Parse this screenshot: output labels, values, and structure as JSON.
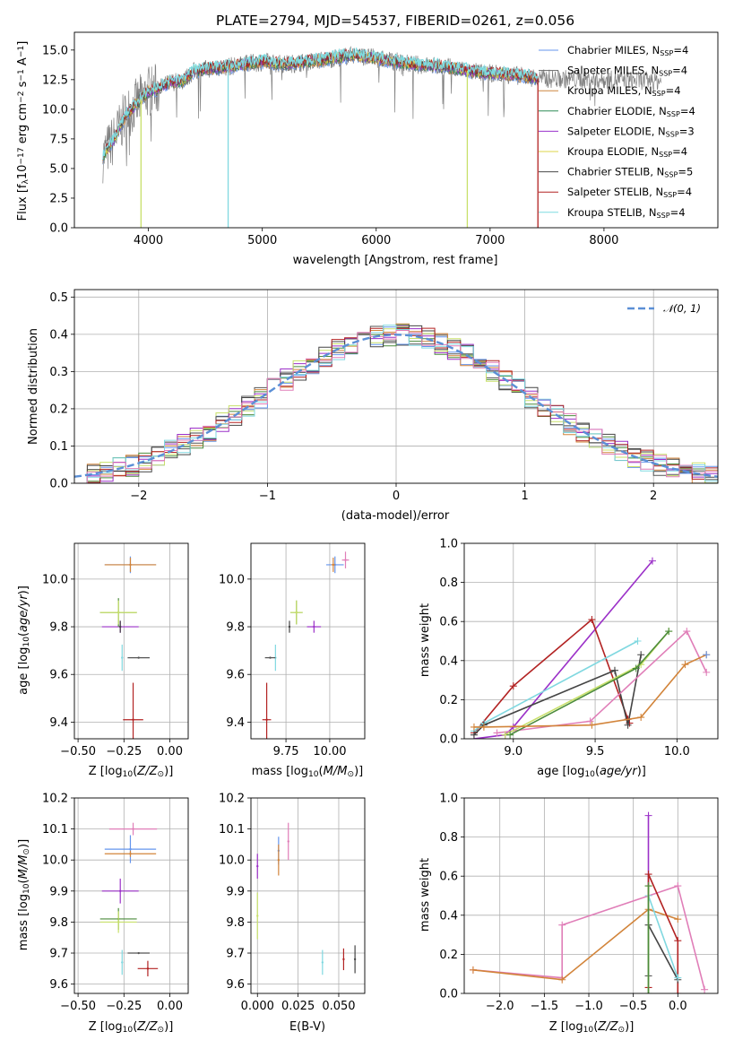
{
  "chart_data": [
    {
      "id": "spectrum",
      "type": "line",
      "title": "PLATE=2794, MJD=54537, FIBERID=0261, z=0.056",
      "xlabel": "wavelength [Angstrom, rest frame]",
      "ylabel": "Flux [fλ10⁻¹⁷ erg cm⁻² s⁻¹ A⁻¹]",
      "xlim": [
        3350,
        9000
      ],
      "ylim": [
        0,
        16.5
      ],
      "xticks": [
        4000,
        5000,
        6000,
        7000,
        8000
      ],
      "yticks": [
        0.0,
        2.5,
        5.0,
        7.5,
        10.0,
        12.5,
        15.0
      ],
      "legend_position": "right",
      "series": [
        {
          "name": "Chabrier MILES, N",
          "sub": "SSP",
          "suffix": "=4",
          "color": "#6495ed"
        },
        {
          "name": "Salpeter MILES, N",
          "sub": "SSP",
          "suffix": "=4",
          "color": "#666666"
        },
        {
          "name": "Kroupa MILES, N",
          "sub": "SSP",
          "suffix": "=4",
          "color": "#cd853f"
        },
        {
          "name": "Chabrier ELODIE, N",
          "sub": "SSP",
          "suffix": "=4",
          "color": "#2e8b57"
        },
        {
          "name": "Salpeter ELODIE, N",
          "sub": "SSP",
          "suffix": "=3",
          "color": "#9932cc"
        },
        {
          "name": "Kroupa ELODIE, N",
          "sub": "SSP",
          "suffix": "=4",
          "color": "#ddd64a"
        },
        {
          "name": "Chabrier STELIB, N",
          "sub": "SSP",
          "suffix": "=5",
          "color": "#4a4a4a"
        },
        {
          "name": "Salpeter STELIB, N",
          "sub": "SSP",
          "suffix": "=4",
          "color": "#b22222"
        },
        {
          "name": "Kroupa STELIB, N",
          "sub": "SSP",
          "suffix": "=4",
          "color": "#7fdbe0"
        }
      ],
      "data_color": "#808080",
      "approx_continuum": {
        "wavelength": [
          3600,
          3700,
          3800,
          3900,
          4000,
          4100,
          4200,
          4300,
          4400,
          4500,
          4700,
          5000,
          5200,
          5500,
          5800,
          6000,
          6300,
          6600,
          6900,
          7200,
          7420
        ],
        "flux": [
          6.0,
          7.5,
          9.5,
          10.5,
          11.5,
          11.8,
          12.3,
          12.4,
          13.2,
          13.4,
          13.6,
          14.0,
          13.8,
          14.1,
          14.6,
          14.3,
          13.8,
          13.6,
          13.1,
          12.9,
          12.6
        ]
      },
      "drops": [
        3935,
        4700,
        6800,
        7420
      ]
    },
    {
      "id": "residuals",
      "type": "line",
      "xlabel": "(data-model)/error",
      "ylabel": "Normed distribution",
      "xlim": [
        -2.5,
        2.5
      ],
      "ylim": [
        0,
        0.52
      ],
      "xticks": [
        -2,
        -1,
        0,
        1,
        2
      ],
      "yticks": [
        0.0,
        0.1,
        0.2,
        0.3,
        0.4,
        0.5
      ],
      "legend_position": "top-right",
      "reference_label": "𝒩(0, 1)",
      "reference_color": "#5b8fd6",
      "bin_width": 0.1,
      "bin_start": -2.5
    },
    {
      "id": "z-vs-age",
      "type": "scatter",
      "xlabel": "Z [log10(Z/Z⊙)]",
      "ylabel": "age  [log10(age/yr)]",
      "xlim": [
        -0.52,
        0.1
      ],
      "ylim": [
        9.33,
        10.15
      ],
      "xticks": [
        -0.5,
        -0.25,
        0.0
      ],
      "yticks": [
        9.4,
        9.6,
        9.8,
        10.0
      ],
      "points": [
        {
          "c": 0,
          "x": -0.215,
          "y": 10.06,
          "xerr": 0.28,
          "yerr": 0.07
        },
        {
          "c": 2,
          "x": -0.215,
          "y": 10.06,
          "xerr": 0.28,
          "yerr": 0.06
        },
        {
          "c": 4,
          "x": -0.27,
          "y": 9.8,
          "xerr": 0.2,
          "yerr": 0.05
        },
        {
          "c": 3,
          "x": -0.28,
          "y": 9.86,
          "xerr": 0.2,
          "yerr": 0.12
        },
        {
          "c": 5,
          "x": -0.28,
          "y": 9.86,
          "xerr": 0.2,
          "yerr": 0.1
        },
        {
          "c": 6,
          "x": -0.27,
          "y": 9.8,
          "xerr": 0.0,
          "yerr": 0.05
        },
        {
          "c": 7,
          "x": -0.2,
          "y": 9.41,
          "xerr": 0.11,
          "yerr": 0.31
        },
        {
          "c": 8,
          "x": -0.26,
          "y": 9.67,
          "xerr": 0.0,
          "yerr": 0.11
        },
        {
          "c": 1,
          "x": -0.17,
          "y": 9.67,
          "xerr": 0.12,
          "yerr": 0.0
        }
      ]
    },
    {
      "id": "mass-vs-age",
      "type": "scatter",
      "xlabel": "mass [log10(M/M⊙)]",
      "ylabel": "",
      "xlim": [
        9.55,
        10.2
      ],
      "ylim": [
        9.33,
        10.15
      ],
      "xticks": [
        9.75,
        10.0
      ],
      "yticks": [
        9.4,
        9.6,
        9.8,
        10.0
      ],
      "points": [
        {
          "c": 0,
          "x": 10.03,
          "y": 10.06,
          "xerr": 0.1,
          "yerr": 0.07
        },
        {
          "c": 2,
          "x": 10.02,
          "y": 10.06,
          "xerr": 0.02,
          "yerr": 0.06
        },
        {
          "c": 9,
          "x": 10.09,
          "y": 10.08,
          "xerr": 0.04,
          "yerr": 0.07
        },
        {
          "c": 4,
          "x": 9.91,
          "y": 9.8,
          "xerr": 0.08,
          "yerr": 0.05
        },
        {
          "c": 3,
          "x": 9.81,
          "y": 9.86,
          "xerr": 0.07,
          "yerr": 0.1
        },
        {
          "c": 5,
          "x": 9.81,
          "y": 9.86,
          "xerr": 0.07,
          "yerr": 0.1
        },
        {
          "c": 6,
          "x": 9.77,
          "y": 9.8,
          "xerr": 0.0,
          "yerr": 0.05
        },
        {
          "c": 7,
          "x": 9.64,
          "y": 9.41,
          "xerr": 0.05,
          "yerr": 0.31
        },
        {
          "c": 8,
          "x": 9.69,
          "y": 9.67,
          "xerr": 0.0,
          "yerr": 0.11
        },
        {
          "c": 1,
          "x": 9.66,
          "y": 9.67,
          "xerr": 0.06,
          "yerr": 0.0
        }
      ]
    },
    {
      "id": "age-vs-weight",
      "type": "line",
      "xlabel": "age  [log10(age/yr)]",
      "ylabel": "mass weight",
      "xlim": [
        8.7,
        10.25
      ],
      "ylim": [
        0,
        1.0
      ],
      "xticks": [
        9.0,
        9.5,
        10.0
      ],
      "yticks": [
        0.0,
        0.2,
        0.4,
        0.6,
        0.8,
        1.0
      ],
      "series": [
        {
          "c": 4,
          "x": [
            8.76,
            8.95,
            9.0,
            9.85
          ],
          "y": [
            0.0,
            0.02,
            0.06,
            0.91
          ]
        },
        {
          "c": 7,
          "x": [
            8.76,
            9.0,
            9.48,
            9.7,
            9.71
          ],
          "y": [
            0.03,
            0.27,
            0.61,
            0.1,
            0.08
          ]
        },
        {
          "c": 8,
          "x": [
            8.76,
            8.82,
            9.76
          ],
          "y": [
            0.04,
            0.08,
            0.5
          ]
        },
        {
          "c": 6,
          "x": [
            8.76,
            8.82,
            9.62,
            9.7,
            9.78
          ],
          "y": [
            0.02,
            0.07,
            0.35,
            0.07,
            0.43
          ]
        },
        {
          "c": 9,
          "x": [
            8.9,
            9.47,
            10.06,
            10.18
          ],
          "y": [
            0.03,
            0.09,
            0.55,
            0.34
          ]
        },
        {
          "c": 5,
          "x": [
            8.95,
            9.78,
            9.95
          ],
          "y": [
            0.02,
            0.38,
            0.55
          ]
        },
        {
          "c": 3,
          "x": [
            8.98,
            9.75,
            9.95
          ],
          "y": [
            0.02,
            0.36,
            0.55
          ]
        },
        {
          "c": 2,
          "x": [
            8.76,
            8.82,
            9.48,
            9.78,
            10.05,
            10.18
          ],
          "y": [
            0.06,
            0.06,
            0.07,
            0.11,
            0.38,
            0.43
          ]
        },
        {
          "c": 0,
          "x": [
            10.18
          ],
          "y": [
            0.43
          ]
        }
      ]
    },
    {
      "id": "z-vs-mass",
      "type": "scatter",
      "xlabel": "Z [log10(Z/Z⊙)]",
      "ylabel": "mass [log10(M/M⊙)]",
      "xlim": [
        -0.52,
        0.1
      ],
      "ylim": [
        9.57,
        10.2
      ],
      "xticks": [
        -0.5,
        -0.25,
        0.0
      ],
      "yticks": [
        9.6,
        9.7,
        9.8,
        9.9,
        10.0,
        10.1,
        10.2
      ],
      "points": [
        {
          "c": 9,
          "x": -0.2,
          "y": 10.1,
          "xerr": 0.26,
          "yerr": 0.04
        },
        {
          "c": 0,
          "x": -0.215,
          "y": 10.035,
          "xerr": 0.28,
          "yerr": 0.09
        },
        {
          "c": 2,
          "x": -0.215,
          "y": 10.02,
          "xerr": 0.28,
          "yerr": 0.02
        },
        {
          "c": 4,
          "x": -0.27,
          "y": 9.9,
          "xerr": 0.2,
          "yerr": 0.08
        },
        {
          "c": 3,
          "x": -0.28,
          "y": 9.81,
          "xerr": 0.2,
          "yerr": 0.07
        },
        {
          "c": 5,
          "x": -0.28,
          "y": 9.8,
          "xerr": 0.2,
          "yerr": 0.07
        },
        {
          "c": 1,
          "x": -0.17,
          "y": 9.7,
          "xerr": 0.12,
          "yerr": 0.0
        },
        {
          "c": 7,
          "x": -0.12,
          "y": 9.65,
          "xerr": 0.11,
          "yerr": 0.05
        },
        {
          "c": 8,
          "x": -0.26,
          "y": 9.67,
          "xerr": 0.0,
          "yerr": 0.08
        }
      ]
    },
    {
      "id": "ebv-vs-mass",
      "type": "scatter",
      "xlabel": "E(B-V)",
      "ylabel": "",
      "xlim": [
        -0.004,
        0.066
      ],
      "ylim": [
        9.57,
        10.2
      ],
      "xticks": [
        0.0,
        0.025,
        0.05
      ],
      "xtick_labels": [
        "0.000",
        "0.025",
        "0.050"
      ],
      "yticks": [
        9.6,
        9.7,
        9.8,
        9.9,
        10.0,
        10.1,
        10.2
      ],
      "points": [
        {
          "c": 4,
          "x": 0.0,
          "y": 9.98,
          "xerr": 0.0,
          "yerr": 0.08
        },
        {
          "c": 5,
          "x": 0.0,
          "y": 9.82,
          "xerr": 0.0,
          "yerr": 0.15
        },
        {
          "c": 0,
          "x": 0.013,
          "y": 10.03,
          "xerr": 0.0,
          "yerr": 0.09
        },
        {
          "c": 2,
          "x": 0.013,
          "y": 10.0,
          "xerr": 0.0,
          "yerr": 0.1
        },
        {
          "c": 9,
          "x": 0.019,
          "y": 10.06,
          "xerr": 0.0,
          "yerr": 0.12
        },
        {
          "c": 8,
          "x": 0.04,
          "y": 9.67,
          "xerr": 0.0,
          "yerr": 0.08
        },
        {
          "c": 7,
          "x": 0.053,
          "y": 9.68,
          "xerr": 0.0,
          "yerr": 0.07
        },
        {
          "c": 6,
          "x": 0.06,
          "y": 9.68,
          "xerr": 0.0,
          "yerr": 0.09
        }
      ]
    },
    {
      "id": "z-vs-weight",
      "type": "line",
      "xlabel": "Z [log10(Z/Z⊙)]",
      "ylabel": "mass weight",
      "xlim": [
        -2.4,
        0.45
      ],
      "ylim": [
        0,
        1.0
      ],
      "xticks": [
        -2.0,
        -1.5,
        -1.0,
        -0.5,
        0.0
      ],
      "yticks": [
        0.0,
        0.2,
        0.4,
        0.6,
        0.8,
        1.0
      ],
      "series": [
        {
          "c": 9,
          "x": [
            -2.3,
            -1.3,
            -1.3,
            0.0,
            0.3
          ],
          "y": [
            0.12,
            0.08,
            0.35,
            0.55,
            0.02
          ]
        },
        {
          "c": 2,
          "x": [
            -2.3,
            -1.3,
            -0.33,
            0.0
          ],
          "y": [
            0.12,
            0.07,
            0.43,
            0.38
          ]
        },
        {
          "c": 4,
          "x": [
            -0.33,
            -0.33
          ],
          "y": [
            0.0,
            0.91
          ]
        },
        {
          "c": 7,
          "x": [
            -0.33,
            -0.33,
            0.0,
            0.0
          ],
          "y": [
            0.03,
            0.61,
            0.27,
            0.0
          ]
        },
        {
          "c": 6,
          "x": [
            -0.33,
            -0.33,
            0.0
          ],
          "y": [
            0.09,
            0.35,
            0.07
          ]
        },
        {
          "c": 8,
          "x": [
            -0.33,
            -0.33,
            0.0
          ],
          "y": [
            0.0,
            0.5,
            0.08
          ]
        },
        {
          "c": 5,
          "x": [
            -0.33,
            -0.33
          ],
          "y": [
            0.0,
            0.55
          ]
        },
        {
          "c": 3,
          "x": [
            -0.33,
            -0.33
          ],
          "y": [
            0.0,
            0.55
          ]
        }
      ]
    }
  ],
  "palette": [
    "#6495ed",
    "#555555",
    "#d2843a",
    "#4b8b3b",
    "#9b30c8",
    "#c8e06a",
    "#444444",
    "#b22222",
    "#80d8e0",
    "#e07eb8"
  ],
  "grid": true
}
